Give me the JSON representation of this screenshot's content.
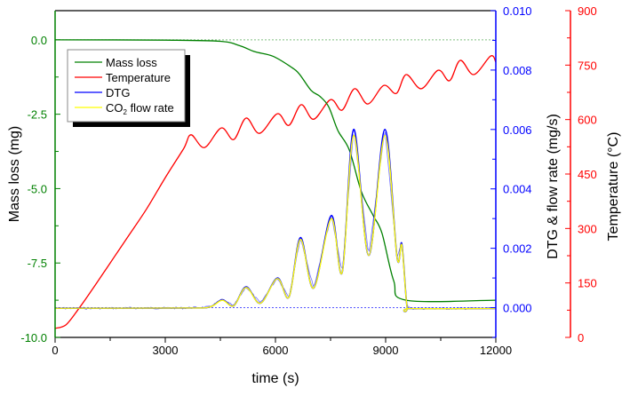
{
  "chart_data": {
    "type": "line",
    "title": "",
    "xlabel": "time (s)",
    "ylabel_left": "Mass loss (mg)",
    "ylabel_right1": "DTG & flow rate (mg/s)",
    "ylabel_right2": "Temperature (°C)",
    "xlim": [
      0,
      12000
    ],
    "ylim_left": [
      -10,
      0.98
    ],
    "ylim_right1": [
      -0.001,
      0.01
    ],
    "ylim_right2": [
      0,
      900
    ],
    "x_ticks": [
      "0",
      "3000",
      "6000",
      "9000",
      "12000"
    ],
    "left_ticks": [
      "0.0",
      "-2.5",
      "-5.0",
      "-7.5",
      "-10.0"
    ],
    "right1_ticks": [
      "0.010",
      "0.008",
      "0.006",
      "0.004",
      "0.002",
      "0.000"
    ],
    "right2_ticks": [
      "900",
      "750",
      "600",
      "450",
      "300",
      "150",
      "0"
    ],
    "legend_position": "top-left",
    "colors": {
      "mass": "#008000",
      "temp": "#ff0000",
      "dtg": "#0000ff",
      "co2": "#ffff00"
    },
    "series": [
      {
        "name": "Mass loss",
        "axis": "left",
        "points": [
          [
            0,
            0
          ],
          [
            3000,
            -0.01
          ],
          [
            4500,
            -0.05
          ],
          [
            5030,
            -0.2
          ],
          [
            5440,
            -0.4
          ],
          [
            5930,
            -0.55
          ],
          [
            6410,
            -0.9
          ],
          [
            6650,
            -1.15
          ],
          [
            6970,
            -1.7
          ],
          [
            7210,
            -1.9
          ],
          [
            7450,
            -2.25
          ],
          [
            7700,
            -3.05
          ],
          [
            8010,
            -3.7
          ],
          [
            8340,
            -5.1
          ],
          [
            8660,
            -5.9
          ],
          [
            8900,
            -6.5
          ],
          [
            9220,
            -8.1
          ],
          [
            9560,
            -8.75
          ],
          [
            12000,
            -8.75
          ]
        ]
      },
      {
        "name": "Temperature",
        "axis": "right2",
        "points": [
          [
            0,
            25
          ],
          [
            300,
            35
          ],
          [
            650,
            80
          ],
          [
            1000,
            130
          ],
          [
            1500,
            205
          ],
          [
            2000,
            280
          ],
          [
            2500,
            355
          ],
          [
            3000,
            440
          ],
          [
            3500,
            520
          ],
          [
            3702,
            558
          ],
          [
            4065,
            523
          ],
          [
            4525,
            577
          ],
          [
            4863,
            545
          ],
          [
            5200,
            604
          ],
          [
            5565,
            562
          ],
          [
            6050,
            616
          ],
          [
            6365,
            584
          ],
          [
            6700,
            641
          ],
          [
            7040,
            601
          ],
          [
            7500,
            655
          ],
          [
            7815,
            626
          ],
          [
            8155,
            685
          ],
          [
            8517,
            643
          ],
          [
            8950,
            694
          ],
          [
            9290,
            672
          ],
          [
            9560,
            724
          ],
          [
            9970,
            685
          ],
          [
            10430,
            736
          ],
          [
            10740,
            707
          ],
          [
            11030,
            763
          ],
          [
            11400,
            724
          ],
          [
            11860,
            775
          ],
          [
            12000,
            758
          ]
        ]
      },
      {
        "name": "DTG",
        "axis": "right1",
        "points": [
          [
            0,
            -2e-05
          ],
          [
            3500,
            -1e-05
          ],
          [
            4200,
            2e-05
          ],
          [
            4550,
            0.00027
          ],
          [
            4860,
            6e-05
          ],
          [
            5200,
            0.0007
          ],
          [
            5590,
            0.00015
          ],
          [
            6050,
            0.001
          ],
          [
            6370,
            0.00036
          ],
          [
            6680,
            0.00236
          ],
          [
            7040,
            0.00066
          ],
          [
            7520,
            0.0031
          ],
          [
            7820,
            0.0012
          ],
          [
            8130,
            0.006
          ],
          [
            8540,
            0.00176
          ],
          [
            8980,
            0.006
          ],
          [
            9310,
            0.0017
          ],
          [
            9440,
            0.00215
          ],
          [
            9580,
            5e-05
          ],
          [
            9700,
            -3e-05
          ],
          [
            12000,
            -3e-05
          ]
        ]
      },
      {
        "name": "CO2 flow rate",
        "legend_main": "CO",
        "legend_sub": "2",
        "legend_rest": " flow rate",
        "axis": "right1",
        "points": [
          [
            0,
            -2e-05
          ],
          [
            3500,
            -1e-05
          ],
          [
            4200,
            2e-05
          ],
          [
            4550,
            0.00025
          ],
          [
            4860,
            6e-05
          ],
          [
            5200,
            0.00068
          ],
          [
            5590,
            0.00015
          ],
          [
            6050,
            0.00098
          ],
          [
            6370,
            0.00036
          ],
          [
            6680,
            0.0023
          ],
          [
            7040,
            0.00066
          ],
          [
            7520,
            0.003
          ],
          [
            7820,
            0.0012
          ],
          [
            8130,
            0.0058
          ],
          [
            8540,
            0.00176
          ],
          [
            8980,
            0.0058
          ],
          [
            9310,
            0.0017
          ],
          [
            9440,
            0.0021
          ],
          [
            9580,
            5e-05
          ],
          [
            9700,
            -3e-05
          ],
          [
            12000,
            -3e-05
          ]
        ]
      }
    ]
  }
}
